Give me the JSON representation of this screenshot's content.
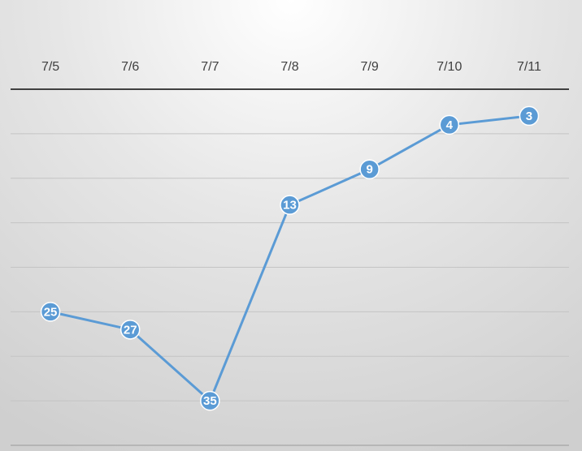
{
  "chart_data": {
    "type": "line",
    "categories": [
      "7/5",
      "7/6",
      "7/7",
      "7/8",
      "7/9",
      "7/10",
      "7/11"
    ],
    "series": [
      {
        "color": "#5b9bd5",
        "values": [
          25,
          27,
          35,
          13,
          9,
          4,
          3
        ]
      }
    ],
    "ylim": [
      0,
      40
    ],
    "y_inverted": true,
    "yticks": [
      0,
      5,
      10,
      15,
      20,
      25,
      30,
      35,
      40
    ],
    "grid": true,
    "data_labels": true
  }
}
